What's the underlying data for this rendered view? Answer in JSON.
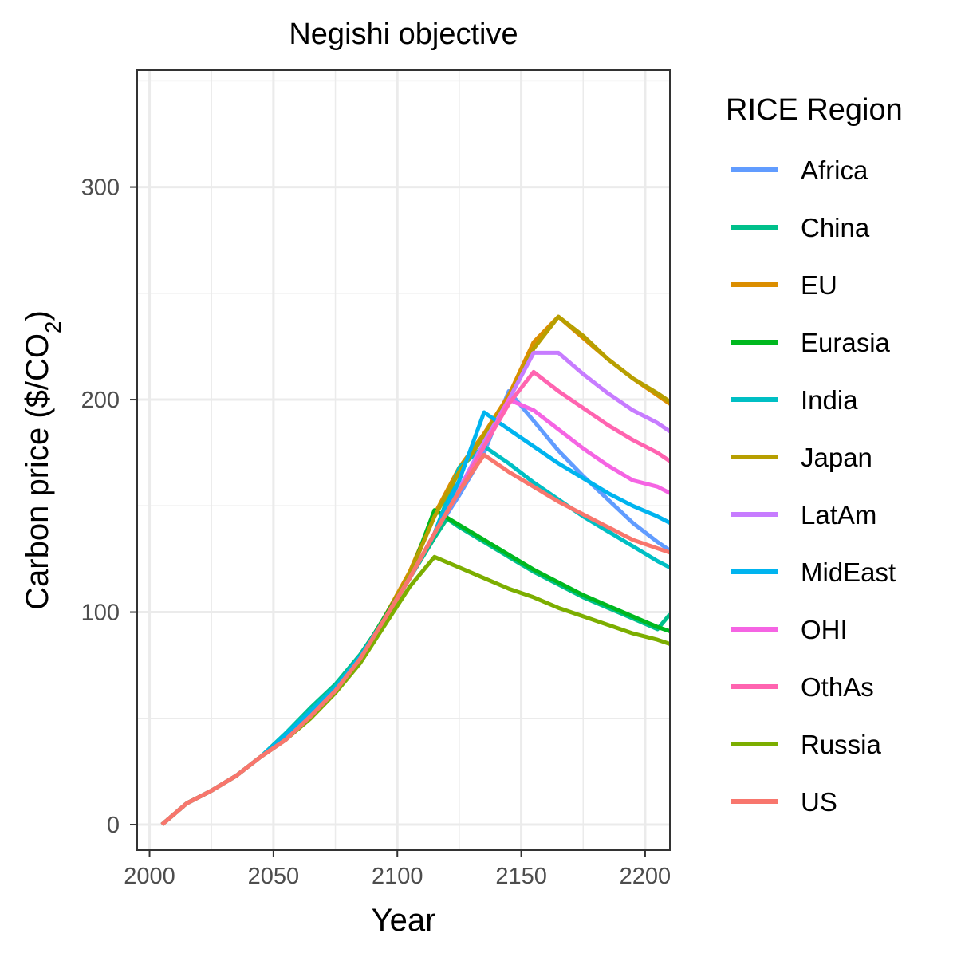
{
  "chart_data": {
    "type": "line",
    "title": "Negishi objective",
    "xlabel": "Year",
    "ylabel": "Carbon price ($/CO",
    "ylabel_sub": "2",
    "ylabel_end": ")",
    "xlim": [
      1995,
      2210
    ],
    "ylim": [
      -12,
      355
    ],
    "xticks": [
      2000,
      2050,
      2100,
      2150,
      2200
    ],
    "yticks": [
      0,
      100,
      200,
      300
    ],
    "x_minor": [
      2025,
      2075,
      2125,
      2175
    ],
    "y_minor": [
      50,
      150,
      250,
      350
    ],
    "grid": true,
    "legend": {
      "title": "RICE Region",
      "placement": "right"
    },
    "series": [
      {
        "name": "Africa",
        "color": "#619CFF",
        "x": [
          2005,
          2015,
          2025,
          2035,
          2045,
          2055,
          2065,
          2075,
          2085,
          2095,
          2105,
          2115,
          2125,
          2135,
          2145,
          2155,
          2165,
          2175,
          2185,
          2195,
          2205,
          2210
        ],
        "y": [
          0,
          10,
          16,
          23,
          32,
          42,
          53,
          64,
          79,
          97,
          116,
          137,
          155,
          175,
          204,
          190,
          176,
          164,
          153,
          142,
          133,
          129
        ]
      },
      {
        "name": "China",
        "color": "#00C08B",
        "x": [
          2005,
          2015,
          2025,
          2035,
          2045,
          2055,
          2065,
          2075,
          2085,
          2095,
          2105,
          2115,
          2120,
          2125,
          2135,
          2145,
          2155,
          2165,
          2175,
          2185,
          2195,
          2205,
          2210
        ],
        "y": [
          0,
          10,
          16,
          23,
          32,
          43,
          55,
          66,
          80,
          97,
          116,
          135,
          144,
          140,
          133,
          126,
          119,
          113,
          107,
          102,
          97,
          92,
          99
        ]
      },
      {
        "name": "EU",
        "color": "#DB8E00",
        "x": [
          2005,
          2015,
          2025,
          2035,
          2045,
          2055,
          2065,
          2075,
          2085,
          2095,
          2105,
          2115,
          2125,
          2135,
          2145,
          2155,
          2165,
          2175,
          2185,
          2195,
          2205,
          2210
        ],
        "y": [
          0,
          10,
          16,
          23,
          32,
          40,
          51,
          63,
          78,
          98,
          119,
          146,
          168,
          184,
          202,
          227,
          239,
          229,
          219,
          210,
          202,
          198
        ]
      },
      {
        "name": "Eurasia",
        "color": "#00B81F",
        "x": [
          2005,
          2015,
          2025,
          2035,
          2045,
          2055,
          2065,
          2075,
          2085,
          2095,
          2105,
          2115,
          2125,
          2135,
          2145,
          2155,
          2165,
          2175,
          2185,
          2195,
          2205,
          2210
        ],
        "y": [
          0,
          10,
          16,
          23,
          32,
          42,
          53,
          64,
          79,
          98,
          117,
          148,
          141,
          134,
          127,
          120,
          114,
          108,
          103,
          98,
          93,
          91
        ]
      },
      {
        "name": "India",
        "color": "#00BFC4",
        "x": [
          2005,
          2015,
          2025,
          2035,
          2045,
          2055,
          2065,
          2075,
          2085,
          2095,
          2105,
          2115,
          2125,
          2135,
          2145,
          2155,
          2165,
          2175,
          2185,
          2195,
          2205,
          2210
        ],
        "y": [
          0,
          10,
          16,
          23,
          32,
          43,
          54,
          65,
          79,
          97,
          116,
          137,
          168,
          178,
          170,
          161,
          153,
          145,
          138,
          131,
          124,
          121
        ]
      },
      {
        "name": "Japan",
        "color": "#B79F00",
        "x": [
          2005,
          2015,
          2025,
          2035,
          2045,
          2055,
          2065,
          2075,
          2085,
          2095,
          2105,
          2115,
          2125,
          2135,
          2145,
          2155,
          2165,
          2175,
          2185,
          2195,
          2205,
          2210
        ],
        "y": [
          0,
          10,
          16,
          23,
          32,
          40,
          51,
          63,
          78,
          97,
          118,
          145,
          166,
          183,
          200,
          224,
          239,
          230,
          219,
          210,
          203,
          199
        ]
      },
      {
        "name": "LatAm",
        "color": "#C77CFF",
        "x": [
          2005,
          2015,
          2025,
          2035,
          2045,
          2055,
          2065,
          2075,
          2085,
          2095,
          2105,
          2115,
          2125,
          2135,
          2145,
          2155,
          2165,
          2175,
          2185,
          2195,
          2205,
          2210
        ],
        "y": [
          0,
          10,
          16,
          23,
          32,
          40,
          51,
          63,
          78,
          97,
          116,
          137,
          158,
          180,
          200,
          222,
          222,
          212,
          203,
          195,
          189,
          185
        ]
      },
      {
        "name": "MidEast",
        "color": "#00B4EF",
        "x": [
          2005,
          2015,
          2025,
          2035,
          2045,
          2055,
          2065,
          2075,
          2085,
          2095,
          2105,
          2115,
          2125,
          2135,
          2145,
          2155,
          2165,
          2175,
          2185,
          2195,
          2205,
          2210
        ],
        "y": [
          0,
          10,
          16,
          23,
          32,
          42,
          53,
          64,
          79,
          97,
          116,
          137,
          162,
          194,
          186,
          178,
          170,
          163,
          156,
          150,
          145,
          142
        ]
      },
      {
        "name": "OHI",
        "color": "#F564E3",
        "x": [
          2005,
          2015,
          2025,
          2035,
          2045,
          2055,
          2065,
          2075,
          2085,
          2095,
          2105,
          2115,
          2125,
          2135,
          2145,
          2155,
          2165,
          2175,
          2185,
          2195,
          2205,
          2210
        ],
        "y": [
          0,
          10,
          16,
          23,
          32,
          40,
          51,
          63,
          78,
          97,
          116,
          137,
          157,
          178,
          200,
          195,
          186,
          177,
          169,
          162,
          159,
          156
        ]
      },
      {
        "name": "OthAs",
        "color": "#FF64B0",
        "x": [
          2005,
          2015,
          2025,
          2035,
          2045,
          2055,
          2065,
          2075,
          2085,
          2095,
          2105,
          2115,
          2125,
          2135,
          2145,
          2155,
          2165,
          2175,
          2185,
          2195,
          2205,
          2210
        ],
        "y": [
          0,
          10,
          16,
          23,
          32,
          40,
          51,
          63,
          78,
          97,
          116,
          137,
          157,
          178,
          198,
          213,
          204,
          196,
          188,
          181,
          175,
          171
        ]
      },
      {
        "name": "Russia",
        "color": "#7CAE00",
        "x": [
          2005,
          2015,
          2025,
          2035,
          2045,
          2055,
          2065,
          2075,
          2085,
          2095,
          2105,
          2115,
          2125,
          2135,
          2145,
          2155,
          2165,
          2175,
          2185,
          2195,
          2205,
          2210
        ],
        "y": [
          0,
          10,
          16,
          23,
          32,
          40,
          50,
          62,
          76,
          94,
          112,
          126,
          121,
          116,
          111,
          107,
          102,
          98,
          94,
          90,
          87,
          85
        ]
      },
      {
        "name": "US",
        "color": "#F8766D",
        "x": [
          2005,
          2015,
          2025,
          2035,
          2045,
          2055,
          2065,
          2075,
          2085,
          2095,
          2105,
          2115,
          2125,
          2135,
          2145,
          2155,
          2165,
          2175,
          2185,
          2195,
          2205,
          2210
        ],
        "y": [
          0,
          10,
          16,
          23,
          32,
          40,
          51,
          63,
          78,
          97,
          116,
          137,
          157,
          174,
          166,
          159,
          152,
          146,
          140,
          134,
          130,
          128
        ]
      }
    ]
  }
}
